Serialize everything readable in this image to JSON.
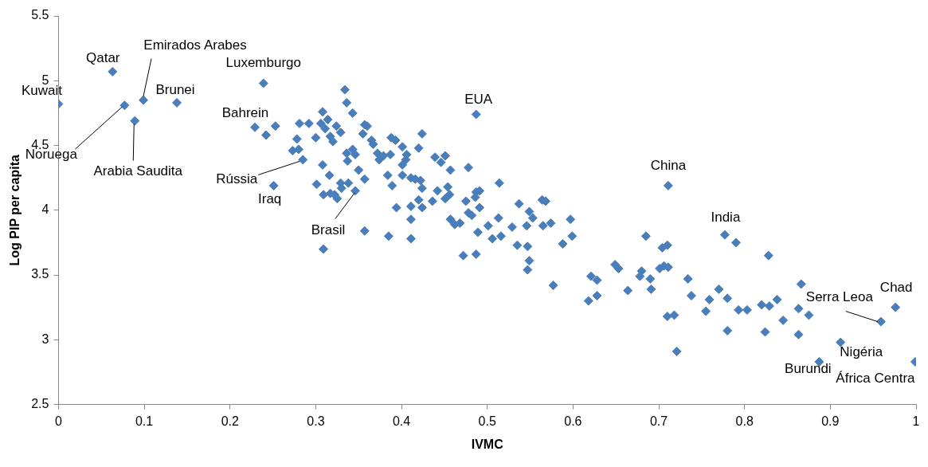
{
  "chart_data": {
    "type": "scatter",
    "xlabel": "IVMC",
    "ylabel": "Log PIP per capita",
    "xlim": [
      0,
      1
    ],
    "ylim": [
      2.5,
      5.5
    ],
    "xticks": [
      0,
      0.1,
      0.2,
      0.3,
      0.4,
      0.5,
      0.6,
      0.7,
      0.8,
      0.9,
      1
    ],
    "yticks": [
      2.5,
      3,
      3.5,
      4,
      4.5,
      5,
      5.5
    ],
    "grid": false,
    "legend": false,
    "marker": "diamond",
    "series": [
      {
        "color": "#4a7ebb",
        "x": [
          0,
          0.063,
          0.099,
          0.077,
          0.089,
          0.138,
          0.239,
          0.229,
          0.242,
          0.253,
          0.285,
          0.251,
          0.346,
          0.487,
          0.711,
          0.777,
          0.959,
          0.976,
          0.912,
          0.887,
          0.999,
          0.308,
          0.281,
          0.292,
          0.306,
          0.278,
          0.3,
          0.273,
          0.28,
          0.308,
          0.301,
          0.309,
          0.309,
          0.334,
          0.336,
          0.343,
          0.314,
          0.311,
          0.324,
          0.329,
          0.357,
          0.36,
          0.355,
          0.424,
          0.317,
          0.32,
          0.365,
          0.367,
          0.388,
          0.393,
          0.401,
          0.42,
          0.336,
          0.343,
          0.346,
          0.337,
          0.372,
          0.379,
          0.387,
          0.374,
          0.406,
          0.405,
          0.401,
          0.439,
          0.446,
          0.451,
          0.478,
          0.457,
          0.316,
          0.35,
          0.357,
          0.384,
          0.401,
          0.411,
          0.416,
          0.422,
          0.389,
          0.424,
          0.442,
          0.454,
          0.456,
          0.451,
          0.487,
          0.491,
          0.514,
          0.317,
          0.322,
          0.329,
          0.33,
          0.325,
          0.338,
          0.394,
          0.411,
          0.42,
          0.424,
          0.436,
          0.475,
          0.478,
          0.482,
          0.491,
          0.537,
          0.549,
          0.457,
          0.462,
          0.468,
          0.411,
          0.513,
          0.501,
          0.529,
          0.546,
          0.489,
          0.516,
          0.506,
          0.535,
          0.547,
          0.357,
          0.385,
          0.411,
          0.472,
          0.487,
          0.549,
          0.547,
          0.486,
          0.564,
          0.568,
          0.597,
          0.553,
          0.565,
          0.574,
          0.588,
          0.599,
          0.577,
          0.621,
          0.628,
          0.618,
          0.628,
          0.649,
          0.653,
          0.664,
          0.685,
          0.704,
          0.71,
          0.68,
          0.678,
          0.69,
          0.691,
          0.701,
          0.706,
          0.711,
          0.71,
          0.718,
          0.721,
          0.79,
          0.828,
          0.734,
          0.738,
          0.77,
          0.759,
          0.78,
          0.755,
          0.793,
          0.803,
          0.82,
          0.829,
          0.838,
          0.863,
          0.875,
          0.866,
          0.78,
          0.824,
          0.845,
          0.863
        ],
        "values": [
          4.82,
          5.07,
          4.85,
          4.81,
          4.69,
          4.83,
          4.98,
          4.64,
          4.58,
          4.65,
          4.39,
          4.19,
          4.15,
          4.74,
          4.19,
          3.81,
          3.14,
          3.25,
          2.98,
          2.83,
          2.83,
          4.76,
          4.67,
          4.67,
          4.67,
          4.55,
          4.56,
          4.46,
          4.47,
          4.35,
          4.2,
          4.12,
          3.7,
          4.93,
          4.83,
          4.75,
          4.7,
          4.63,
          4.65,
          4.6,
          4.66,
          4.65,
          4.59,
          4.59,
          4.57,
          4.53,
          4.54,
          4.51,
          4.56,
          4.54,
          4.49,
          4.48,
          4.44,
          4.47,
          4.43,
          4.38,
          4.44,
          4.42,
          4.43,
          4.39,
          4.43,
          4.39,
          4.35,
          4.41,
          4.37,
          4.42,
          4.33,
          4.31,
          4.27,
          4.31,
          4.24,
          4.27,
          4.27,
          4.25,
          4.24,
          4.23,
          4.19,
          4.17,
          4.15,
          4.18,
          4.12,
          4.09,
          4.14,
          4.15,
          4.21,
          4.13,
          4.12,
          4.21,
          4.17,
          4.09,
          4.21,
          4.02,
          4.03,
          4.08,
          4.02,
          4.07,
          4.07,
          3.98,
          3.96,
          4.02,
          4.05,
          3.99,
          3.93,
          3.89,
          3.9,
          3.93,
          3.94,
          3.88,
          3.87,
          3.88,
          3.83,
          3.8,
          3.78,
          3.73,
          3.72,
          3.84,
          3.8,
          3.78,
          3.65,
          3.66,
          3.61,
          3.54,
          4.1,
          4.08,
          4.07,
          3.93,
          3.94,
          3.88,
          3.9,
          3.74,
          3.8,
          3.42,
          3.49,
          3.46,
          3.3,
          3.34,
          3.58,
          3.55,
          3.38,
          3.8,
          3.71,
          3.73,
          3.53,
          3.49,
          3.47,
          3.39,
          3.55,
          3.57,
          3.56,
          3.18,
          3.19,
          2.91,
          3.75,
          3.65,
          3.47,
          3.34,
          3.39,
          3.31,
          3.32,
          3.22,
          3.23,
          3.23,
          3.27,
          3.26,
          3.31,
          3.24,
          3.19,
          3.43,
          3.07,
          3.06,
          3.15,
          3.04
        ]
      }
    ],
    "annotations": [
      {
        "text": "Kuwait",
        "x": 0,
        "y": 4.82
      },
      {
        "text": "Qatar",
        "x": 0.063,
        "y": 5.07
      },
      {
        "text": "Emirados Arabes",
        "x": 0.099,
        "y": 4.85
      },
      {
        "text": "Noruega",
        "x": 0.077,
        "y": 4.81
      },
      {
        "text": "Arabia Saudita",
        "x": 0.089,
        "y": 4.69
      },
      {
        "text": "Brunei",
        "x": 0.138,
        "y": 4.83
      },
      {
        "text": "Luxemburgo",
        "x": 0.239,
        "y": 4.98
      },
      {
        "text": "Bahrein",
        "x": 0.229,
        "y": 4.64
      },
      {
        "text": "Rússia",
        "x": 0.285,
        "y": 4.39
      },
      {
        "text": "Iraq",
        "x": 0.251,
        "y": 4.19
      },
      {
        "text": "Brasil",
        "x": 0.346,
        "y": 4.15
      },
      {
        "text": "EUA",
        "x": 0.487,
        "y": 4.74
      },
      {
        "text": "China",
        "x": 0.711,
        "y": 4.19
      },
      {
        "text": "India",
        "x": 0.777,
        "y": 3.81
      },
      {
        "text": "Serra Leoa",
        "x": 0.959,
        "y": 3.14
      },
      {
        "text": "Chad",
        "x": 0.976,
        "y": 3.25
      },
      {
        "text": "Nigéria",
        "x": 0.912,
        "y": 2.98
      },
      {
        "text": "Burundi",
        "x": 0.887,
        "y": 2.83
      },
      {
        "text": "África Centra",
        "x": 0.999,
        "y": 2.83
      }
    ]
  }
}
